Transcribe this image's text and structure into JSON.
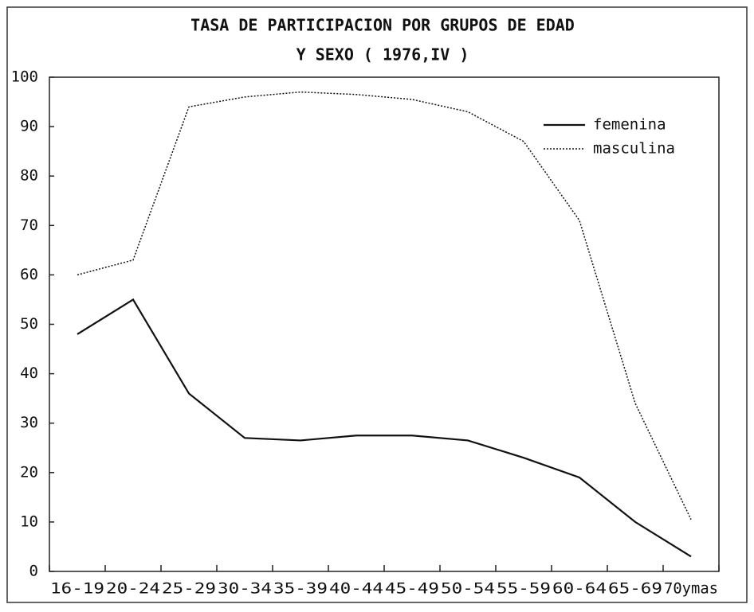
{
  "chart_data": {
    "type": "line",
    "title": "TASA DE PARTICIPACION POR GRUPOS DE EDAD",
    "subtitle": "Y SEXO ( 1976,IV )",
    "categories": [
      "16-19",
      "20-24",
      "25-29",
      "30-34",
      "35-39",
      "40-44",
      "45-49",
      "50-54",
      "55-59",
      "60-64",
      "65-69",
      "70ymas"
    ],
    "series": [
      {
        "name": "femenina",
        "color": "#111111",
        "dash": "solid",
        "values": [
          48,
          55,
          36,
          27,
          26.5,
          27.5,
          27.5,
          26.5,
          23,
          19,
          10,
          3
        ]
      },
      {
        "name": "masculina",
        "color": "#111111",
        "dash": "dotted",
        "values": [
          60,
          63,
          94,
          96,
          97,
          96.5,
          95.5,
          93,
          87,
          71,
          34,
          10.5
        ]
      }
    ],
    "ylim": [
      0,
      100
    ],
    "yticks": [
      0,
      10,
      20,
      30,
      40,
      50,
      60,
      70,
      80,
      90,
      100
    ],
    "legend": "top-right"
  }
}
